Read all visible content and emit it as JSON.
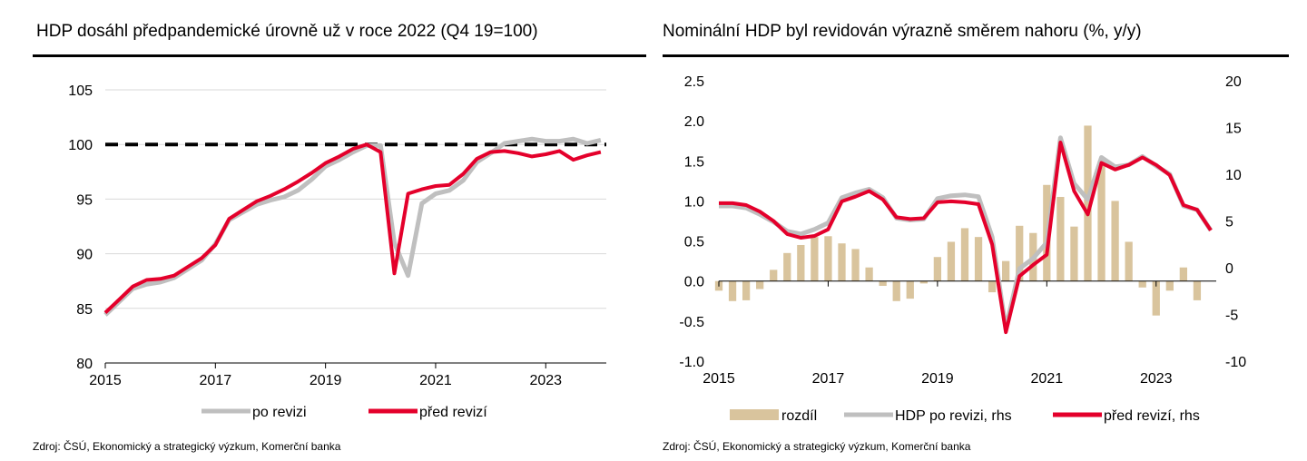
{
  "colors": {
    "revised": "#bfbfbf",
    "before": "#e4002b",
    "diff": "#d9c49d",
    "baseline": "#000000",
    "grid": "#d9d9d9"
  },
  "chart_data": [
    {
      "type": "line",
      "title": "HDP dosáhl předpandemické úrovně už v roce 2022 (Q4 19=100)",
      "source": "Zdroj: ČSÚ, Ekonomický a strategický výzkum, Komerční banka",
      "xlim": [
        2015,
        2024.1
      ],
      "x_ticks": [
        2015,
        2017,
        2019,
        2021,
        2023
      ],
      "ylim": [
        80,
        105
      ],
      "y_ticks": [
        80,
        85,
        90,
        95,
        100,
        105
      ],
      "grid": true,
      "legend_position": "bottom",
      "baseline": 100,
      "x": [
        2015.0,
        2015.25,
        2015.5,
        2015.75,
        2016.0,
        2016.25,
        2016.5,
        2016.75,
        2017.0,
        2017.25,
        2017.5,
        2017.75,
        2018.0,
        2018.25,
        2018.5,
        2018.75,
        2019.0,
        2019.25,
        2019.5,
        2019.75,
        2020.0,
        2020.25,
        2020.5,
        2020.75,
        2021.0,
        2021.25,
        2021.5,
        2021.75,
        2022.0,
        2022.25,
        2022.5,
        2022.75,
        2023.0,
        2023.25,
        2023.5,
        2023.75,
        2024.0
      ],
      "series": [
        {
          "name": "po revizi",
          "values": [
            84.4,
            85.6,
            86.8,
            87.2,
            87.4,
            87.8,
            88.6,
            89.4,
            90.9,
            93.1,
            93.8,
            94.5,
            94.9,
            95.2,
            95.8,
            96.8,
            98.0,
            98.6,
            99.3,
            99.9,
            99.9,
            91.0,
            88.0,
            94.6,
            95.5,
            95.8,
            96.7,
            98.4,
            99.2,
            100.1,
            100.3,
            100.5,
            100.3,
            100.3,
            100.5,
            100.1,
            100.4
          ]
        },
        {
          "name": "před revizí",
          "values": [
            84.6,
            85.8,
            87.0,
            87.6,
            87.7,
            88.0,
            88.8,
            89.6,
            90.8,
            93.2,
            94.0,
            94.8,
            95.3,
            95.9,
            96.6,
            97.4,
            98.3,
            98.9,
            99.6,
            100.0,
            99.3,
            88.2,
            95.5,
            95.9,
            96.2,
            96.3,
            97.3,
            98.7,
            99.3,
            99.4,
            99.2,
            98.9,
            99.1,
            99.4,
            98.6,
            99.0,
            99.3
          ]
        }
      ]
    },
    {
      "type": "bar+line",
      "title": "Nominální HDP byl revidován výrazně směrem nahoru (%, y/y)",
      "source": "Zdroj: ČSÚ, Ekonomický a strategický výzkum, Komerční banka",
      "xlim": [
        2015,
        2024.1
      ],
      "x_ticks": [
        2015,
        2017,
        2019,
        2021,
        2023
      ],
      "ylim": [
        -1.0,
        2.5
      ],
      "y_ticks": [
        -1.0,
        -0.5,
        0.0,
        0.5,
        1.0,
        1.5,
        2.0,
        2.5
      ],
      "y2lim": [
        -10,
        20
      ],
      "y2_ticks": [
        -10,
        -5,
        0,
        5,
        10,
        15,
        20
      ],
      "grid": false,
      "legend_position": "bottom",
      "x": [
        2015.0,
        2015.25,
        2015.5,
        2015.75,
        2016.0,
        2016.25,
        2016.5,
        2016.75,
        2017.0,
        2017.25,
        2017.5,
        2017.75,
        2018.0,
        2018.25,
        2018.5,
        2018.75,
        2019.0,
        2019.25,
        2019.5,
        2019.75,
        2020.0,
        2020.25,
        2020.5,
        2020.75,
        2021.0,
        2021.25,
        2021.5,
        2021.75,
        2022.0,
        2022.25,
        2022.5,
        2022.75,
        2023.0,
        2023.25,
        2023.5,
        2023.75,
        2024.0
      ],
      "series": [
        {
          "name": "rozdíl",
          "axis": "left",
          "kind": "bar",
          "values": [
            -0.12,
            -0.25,
            -0.24,
            -0.1,
            0.14,
            0.35,
            0.45,
            0.55,
            0.56,
            0.47,
            0.4,
            0.17,
            -0.06,
            -0.25,
            -0.22,
            -0.03,
            0.3,
            0.49,
            0.66,
            0.55,
            -0.14,
            0.25,
            0.69,
            0.6,
            1.2,
            1.05,
            0.68,
            1.94,
            1.5,
            1.0,
            0.49,
            -0.08,
            -0.43,
            -0.12,
            0.17,
            -0.24,
            0.0
          ]
        },
        {
          "name": "HDP po revizi, rhs",
          "axis": "right",
          "kind": "line",
          "values": [
            6.6,
            6.6,
            6.4,
            5.7,
            4.9,
            3.9,
            3.6,
            4.1,
            4.8,
            7.5,
            8.0,
            8.4,
            7.5,
            5.3,
            5.1,
            5.2,
            7.4,
            7.7,
            7.8,
            7.6,
            3.3,
            -6.5,
            -0.1,
            1.0,
            2.7,
            13.9,
            9.0,
            7.3,
            11.8,
            10.8,
            11.0,
            11.9,
            10.9,
            10.0,
            6.6,
            6.2,
            4.0
          ]
        },
        {
          "name": "před revizí, rhs",
          "axis": "right",
          "kind": "line",
          "values": [
            6.9,
            6.9,
            6.7,
            6.0,
            5.0,
            3.6,
            3.2,
            3.4,
            4.1,
            7.1,
            7.6,
            8.2,
            7.3,
            5.4,
            5.2,
            5.3,
            7.0,
            7.1,
            7.0,
            6.8,
            2.5,
            -6.9,
            -0.9,
            0.3,
            1.4,
            13.4,
            8.2,
            5.7,
            11.2,
            10.5,
            11.0,
            11.8,
            11.0,
            9.9,
            6.7,
            6.2,
            4.0
          ]
        }
      ]
    }
  ]
}
